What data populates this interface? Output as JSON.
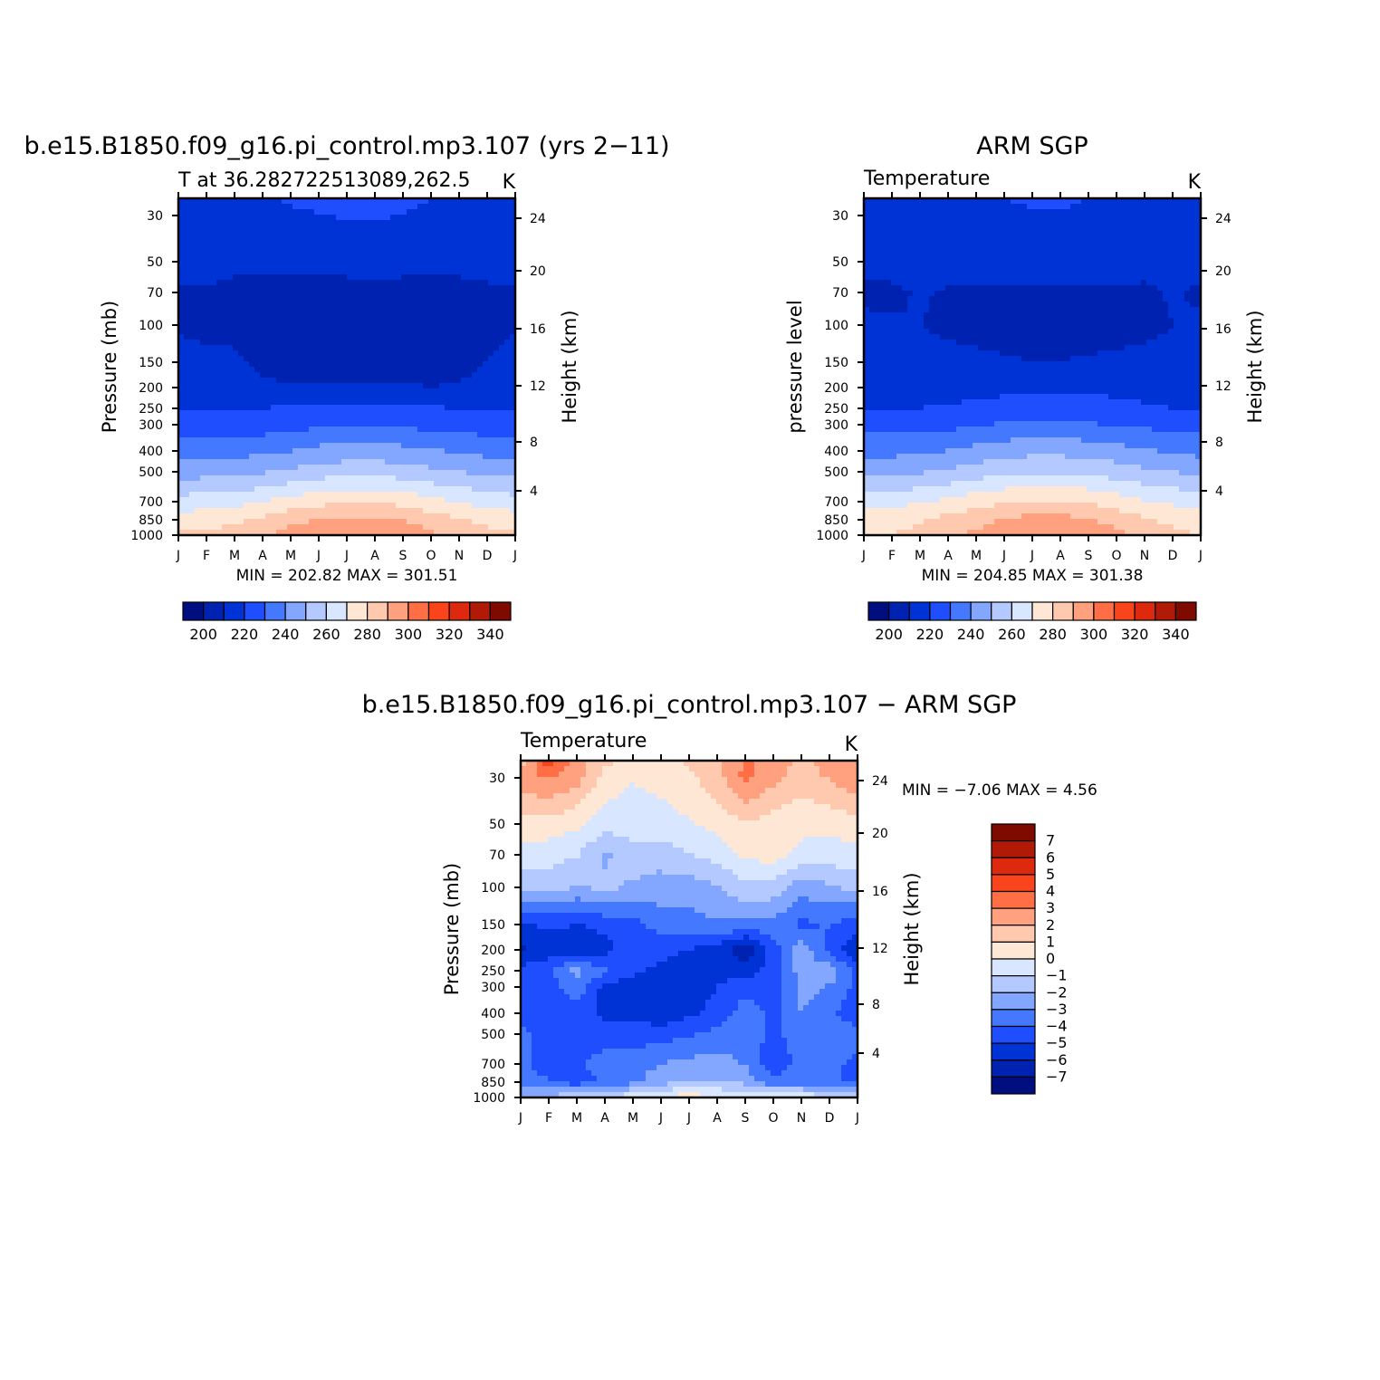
{
  "chart_data": [
    {
      "type": "heatmap",
      "title": "b.e15.B1850.f09_g16.pi_control.mp3.107 (yrs 2−11)",
      "subtitle_left": "T at 36.282722513089,262.5",
      "subtitle_right": "K",
      "ylabel": "Pressure (mb)",
      "ylabel_right": "Height (km)",
      "x_ticks": [
        "J",
        "F",
        "M",
        "A",
        "M",
        "J",
        "J",
        "A",
        "S",
        "O",
        "N",
        "D",
        "J"
      ],
      "y_ticks": [
        "30",
        "50",
        "70",
        "100",
        "150",
        "200",
        "250",
        "300",
        "400",
        "500",
        "700",
        "850",
        "1000"
      ],
      "y_ticks_right": [
        "24",
        "20",
        "16",
        "12",
        "8",
        "4"
      ],
      "stats": "MIN = 202.82 MAX = 301.51",
      "levels": [
        200,
        210,
        220,
        230,
        240,
        250,
        260,
        270,
        280,
        290,
        300,
        310,
        320,
        330,
        340
      ],
      "colorbar_labels": [
        "200",
        "220",
        "240",
        "260",
        "280",
        "300",
        "320",
        "340"
      ],
      "x": [
        0,
        1,
        2,
        3,
        4,
        5,
        6,
        7,
        8,
        9,
        10,
        11,
        12
      ],
      "pressure_levels": [
        20,
        50,
        70,
        100,
        150,
        200,
        250,
        300,
        400,
        500,
        700,
        850,
        1000
      ],
      "values": [
        [
          219,
          219,
          219,
          219,
          221,
          222,
          223,
          223,
          222,
          220,
          219,
          219,
          219
        ],
        [
          214,
          213,
          212,
          212,
          212,
          213,
          214,
          215,
          214,
          213,
          213,
          214,
          214
        ],
        [
          209,
          209,
          208,
          207,
          206,
          206,
          206,
          206,
          206,
          206,
          207,
          208,
          209
        ],
        [
          209,
          208,
          207,
          206,
          205,
          205,
          205,
          205,
          205,
          205,
          206,
          207,
          209
        ],
        [
          213,
          212,
          212,
          207,
          206,
          206,
          205,
          205,
          205,
          206,
          207,
          210,
          213
        ],
        [
          215,
          215,
          214,
          212,
          211,
          211,
          211,
          211,
          211,
          210,
          211,
          213,
          215
        ],
        [
          219,
          219,
          219,
          220,
          221,
          222,
          223,
          222,
          222,
          221,
          220,
          219,
          219
        ],
        [
          224,
          224,
          224,
          225,
          227,
          228,
          229,
          229,
          228,
          227,
          226,
          225,
          224
        ],
        [
          236,
          236,
          236,
          238,
          240,
          243,
          244,
          244,
          243,
          241,
          239,
          237,
          236
        ],
        [
          246,
          246,
          247,
          249,
          252,
          255,
          256,
          256,
          255,
          252,
          250,
          248,
          246
        ],
        [
          264,
          265,
          266,
          270,
          274,
          277,
          279,
          279,
          277,
          273,
          269,
          266,
          264
        ],
        [
          275,
          276,
          278,
          282,
          287,
          290,
          292,
          292,
          290,
          285,
          281,
          277,
          275
        ],
        [
          281,
          282,
          285,
          289,
          294,
          298,
          301.5,
          300,
          297,
          292,
          287,
          283,
          281
        ]
      ]
    },
    {
      "type": "heatmap",
      "title": "ARM SGP",
      "subtitle_left": "Temperature",
      "subtitle_right": "K",
      "ylabel": "pressure level",
      "ylabel_right": "Height (km)",
      "x_ticks": [
        "J",
        "F",
        "M",
        "A",
        "M",
        "J",
        "J",
        "A",
        "S",
        "O",
        "N",
        "D",
        "J"
      ],
      "y_ticks": [
        "30",
        "50",
        "70",
        "100",
        "150",
        "200",
        "250",
        "300",
        "400",
        "500",
        "700",
        "850",
        "1000"
      ],
      "y_ticks_right": [
        "24",
        "20",
        "16",
        "12",
        "8",
        "4"
      ],
      "stats": "MIN = 204.85 MAX = 301.38",
      "levels": [
        200,
        210,
        220,
        230,
        240,
        250,
        260,
        270,
        280,
        290,
        300,
        310,
        320,
        330,
        340
      ],
      "colorbar_labels": [
        "200",
        "220",
        "240",
        "260",
        "280",
        "300",
        "320",
        "340"
      ],
      "x": [
        0,
        1,
        2,
        3,
        4,
        5,
        6,
        7,
        8,
        9,
        10,
        11,
        12
      ],
      "pressure_levels": [
        20,
        50,
        70,
        100,
        150,
        200,
        250,
        300,
        400,
        500,
        700,
        850,
        1000
      ],
      "values": [
        [
          218,
          218,
          218,
          218,
          219,
          220,
          221,
          221,
          220,
          219,
          218,
          218,
          218
        ],
        [
          214,
          214,
          214,
          214,
          214,
          214,
          215,
          215,
          215,
          214,
          214,
          214,
          214
        ],
        [
          208,
          208,
          211,
          209,
          209,
          209,
          209,
          209,
          209,
          209,
          208,
          211,
          208
        ],
        [
          212,
          211,
          210,
          208,
          207,
          206,
          206,
          206,
          206,
          206,
          207,
          210,
          212
        ],
        [
          215,
          215,
          214,
          213,
          212,
          211,
          210,
          210,
          211,
          212,
          213,
          214,
          215
        ],
        [
          216,
          216,
          216,
          216,
          217,
          218,
          219,
          219,
          219,
          218,
          217,
          216,
          216
        ],
        [
          220,
          220,
          220,
          221,
          222,
          223,
          224,
          224,
          223,
          222,
          221,
          220,
          220
        ],
        [
          226,
          226,
          226,
          227,
          229,
          231,
          232,
          232,
          231,
          229,
          228,
          227,
          226
        ],
        [
          237,
          237,
          238,
          240,
          243,
          246,
          247,
          247,
          246,
          244,
          241,
          239,
          237
        ],
        [
          247,
          248,
          249,
          251,
          255,
          258,
          259,
          259,
          258,
          255,
          252,
          250,
          247
        ],
        [
          266,
          267,
          269,
          272,
          276,
          279,
          281,
          281,
          279,
          275,
          271,
          268,
          266
        ],
        [
          275,
          276,
          279,
          283,
          287,
          291,
          293,
          293,
          291,
          286,
          282,
          277,
          275
        ],
        [
          279,
          280,
          283,
          287,
          292,
          296,
          300,
          301.4,
          298,
          293,
          288,
          283,
          279
        ]
      ]
    },
    {
      "type": "heatmap",
      "title": "b.e15.B1850.f09_g16.pi_control.mp3.107 − ARM SGP",
      "subtitle_left": "Temperature",
      "subtitle_right": "K",
      "ylabel": "Pressure (mb)",
      "ylabel_right": "Height (km)",
      "x_ticks": [
        "J",
        "F",
        "M",
        "A",
        "M",
        "J",
        "J",
        "A",
        "S",
        "O",
        "N",
        "D",
        "J"
      ],
      "y_ticks": [
        "30",
        "50",
        "70",
        "100",
        "150",
        "200",
        "250",
        "300",
        "400",
        "500",
        "700",
        "850",
        "1000"
      ],
      "y_ticks_right": [
        "24",
        "20",
        "16",
        "12",
        "8",
        "4"
      ],
      "stats": "MIN = −7.06 MAX = 4.56",
      "levels": [
        -7,
        -6,
        -5,
        -4,
        -3,
        -2,
        -1,
        0,
        1,
        2,
        3,
        4,
        5,
        6,
        7
      ],
      "colorbar_labels": [
        "7",
        "6",
        "5",
        "4",
        "3",
        "2",
        "1",
        "0",
        "−1",
        "−2",
        "−3",
        "−4",
        "−5",
        "−6",
        "−7"
      ],
      "x": [
        0,
        1,
        2,
        3,
        4,
        5,
        6,
        7,
        8,
        9,
        10,
        11,
        12
      ],
      "pressure_levels": [
        20,
        30,
        50,
        70,
        100,
        150,
        200,
        250,
        300,
        400,
        500,
        700,
        850,
        1000
      ],
      "values": [
        [
          1.5,
          4.6,
          2.5,
          1.2,
          0.8,
          0.6,
          1.2,
          1.8,
          3.2,
          2.5,
          1.8,
          2.3,
          3.0
        ],
        [
          2.6,
          3.1,
          2.4,
          0.6,
          0.1,
          0.3,
          0.8,
          1.6,
          3.3,
          2.3,
          1.6,
          2.1,
          2.8
        ],
        [
          0.5,
          0.6,
          0.2,
          -0.5,
          -0.7,
          -0.4,
          -0.1,
          0.3,
          0.9,
          0.5,
          0.2,
          0.3,
          0.6
        ],
        [
          -0.4,
          -0.6,
          -0.9,
          -2.2,
          -1.2,
          -1.6,
          -1.1,
          -0.6,
          0.2,
          0.4,
          -0.2,
          -0.4,
          -0.4
        ],
        [
          -1.6,
          -1.5,
          -2.1,
          -1.7,
          -2.3,
          -2.4,
          -2.5,
          -2.1,
          -1.2,
          -1.4,
          -2.6,
          -2.2,
          -1.6
        ],
        [
          -5.1,
          -4.8,
          -5.0,
          -4.7,
          -4.4,
          -3.6,
          -3.4,
          -3.1,
          -3.2,
          -3.3,
          -4.3,
          -3.9,
          -4.8
        ],
        [
          -6.3,
          -5.5,
          -6.1,
          -5.4,
          -4.2,
          -4.6,
          -5.1,
          -5.3,
          -7.06,
          -4.6,
          -2.3,
          -4.4,
          -5.8
        ],
        [
          -4.6,
          -4.2,
          -2.6,
          -3.8,
          -4.6,
          -5.4,
          -5.6,
          -5.2,
          -5.5,
          -4.4,
          -2.6,
          -2.3,
          -4.4
        ],
        [
          -4.3,
          -4.6,
          -3.3,
          -5.4,
          -5.7,
          -5.8,
          -5.5,
          -5.0,
          -4.4,
          -4.7,
          -2.6,
          -3.1,
          -4.3
        ],
        [
          -4.6,
          -4.4,
          -4.6,
          -5.2,
          -5.3,
          -5.7,
          -5.2,
          -4.7,
          -3.4,
          -4.3,
          -3.0,
          -3.8,
          -4.6
        ],
        [
          -3.6,
          -4.6,
          -4.4,
          -4.5,
          -4.5,
          -4.5,
          -4.1,
          -3.7,
          -3.5,
          -4.3,
          -3.5,
          -3.2,
          -3.6
        ],
        [
          -3.7,
          -4.7,
          -4.1,
          -3.6,
          -3.4,
          -3.0,
          -2.7,
          -2.5,
          -3.1,
          -4.6,
          -3.7,
          -3.7,
          -4.3
        ],
        [
          -3.3,
          -3.9,
          -4.5,
          -3.9,
          -3.3,
          -2.4,
          -1.9,
          -1.9,
          -2.3,
          -3.8,
          -3.6,
          -3.6,
          -4.4
        ],
        [
          -1.8,
          -1.7,
          -1.2,
          -0.7,
          -0.4,
          0.3,
          0.5,
          0.2,
          -0.3,
          0.2,
          -0.2,
          -0.7,
          -1.4
        ]
      ]
    }
  ],
  "colors": {
    "temperature": [
      "#000e80",
      "#0022b0",
      "#0033d6",
      "#1f4eff",
      "#4478ff",
      "#83a6ff",
      "#b3c9ff",
      "#d8e7ff",
      "#ffe7d6",
      "#ffc9b0",
      "#ffa17f",
      "#ff6e44",
      "#f9441c",
      "#dd2a0e",
      "#b01a07",
      "#7f0a00"
    ],
    "difference": [
      "#000e80",
      "#0022b0",
      "#0033d6",
      "#1f4eff",
      "#4478ff",
      "#83a6ff",
      "#b3c9ff",
      "#d8e7ff",
      "#ffe7d6",
      "#ffc9b0",
      "#ffa17f",
      "#ff6e44",
      "#f9441c",
      "#dd2a0e",
      "#b01a07",
      "#7f0a00"
    ]
  }
}
